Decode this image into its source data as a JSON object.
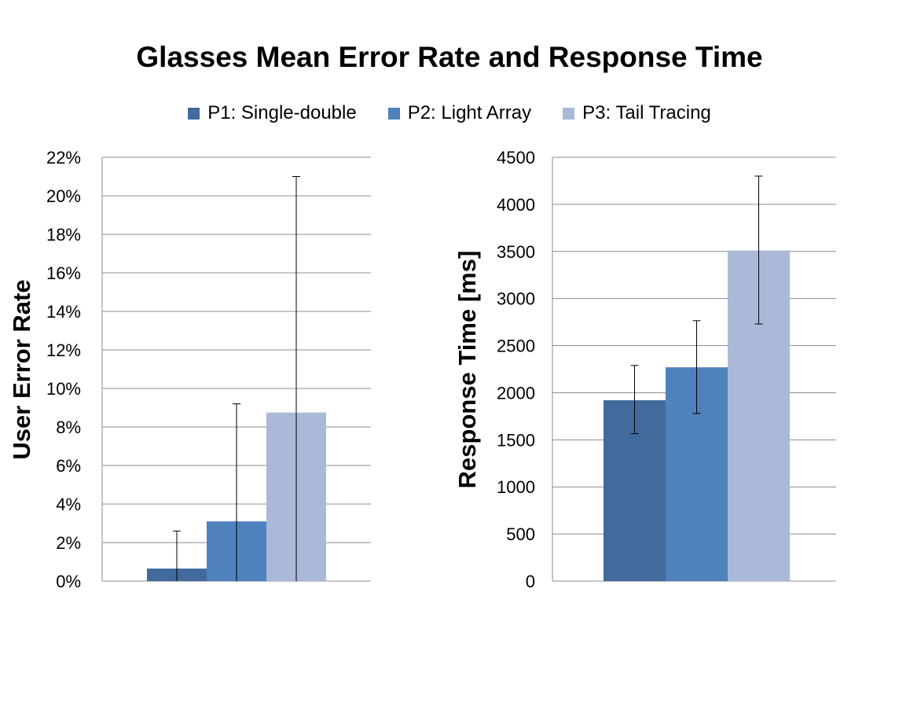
{
  "title": "Glasses Mean Error Rate and Response Time",
  "legend": [
    {
      "label": "P1: Single-double",
      "color": "#426A9C"
    },
    {
      "label": "P2: Light Array",
      "color": "#4F81BD"
    },
    {
      "label": "P3: Tail Tracing",
      "color": "#AAB9D8"
    }
  ],
  "chart_data": [
    {
      "type": "bar",
      "title": "",
      "xlabel": "",
      "ylabel": "User Error Rate",
      "ylim": [
        0,
        22
      ],
      "yticks": [
        "0%",
        "2%",
        "4%",
        "6%",
        "8%",
        "10%",
        "12%",
        "14%",
        "16%",
        "18%",
        "20%",
        "22%"
      ],
      "grid": true,
      "series": [
        {
          "name": "P1: Single-double",
          "value": 0.65,
          "error": [
            0.0,
            2.6
          ]
        },
        {
          "name": "P2: Light Array",
          "value": 3.1,
          "error": [
            0.0,
            9.2
          ]
        },
        {
          "name": "P3: Tail Tracing",
          "value": 8.75,
          "error": [
            0.0,
            21.0
          ]
        }
      ]
    },
    {
      "type": "bar",
      "title": "",
      "xlabel": "",
      "ylabel": "Response Time [ms]",
      "ylim": [
        0,
        4500
      ],
      "yticks": [
        "0",
        "500",
        "1000",
        "1500",
        "2000",
        "2500",
        "3000",
        "3500",
        "4000",
        "4500"
      ],
      "grid": true,
      "series": [
        {
          "name": "P1: Single-double",
          "value": 1920,
          "error": [
            1565,
            2290
          ]
        },
        {
          "name": "P2: Light Array",
          "value": 2270,
          "error": [
            1780,
            2765
          ]
        },
        {
          "name": "P3: Tail Tracing",
          "value": 3510,
          "error": [
            2730,
            4300
          ]
        }
      ]
    }
  ]
}
